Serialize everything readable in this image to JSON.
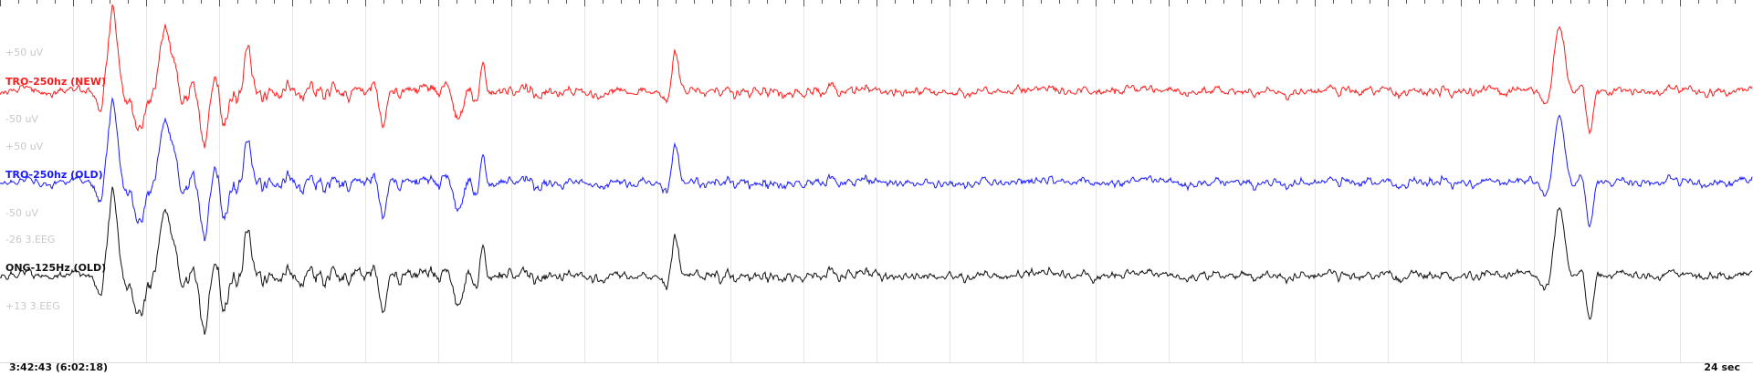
{
  "channels": [
    {
      "name": "TRO-250hz (NEW)",
      "color": "#ff1a1a",
      "scale_top": "+50 uV",
      "scale_bottom": "-50 uV"
    },
    {
      "name": "TRO-250hz (OLD)",
      "color": "#1a1aff",
      "scale_top": "+50 uV",
      "scale_bottom": "-50 uV"
    },
    {
      "name": "ONG-125Hz (OLD)",
      "color": "#111111",
      "scale_top": "-26 3.EEG",
      "scale_bottom": "+13 3.EEG"
    }
  ],
  "footer": {
    "time": "3:42:43 (6:02:18)",
    "span": "24 sec"
  }
}
